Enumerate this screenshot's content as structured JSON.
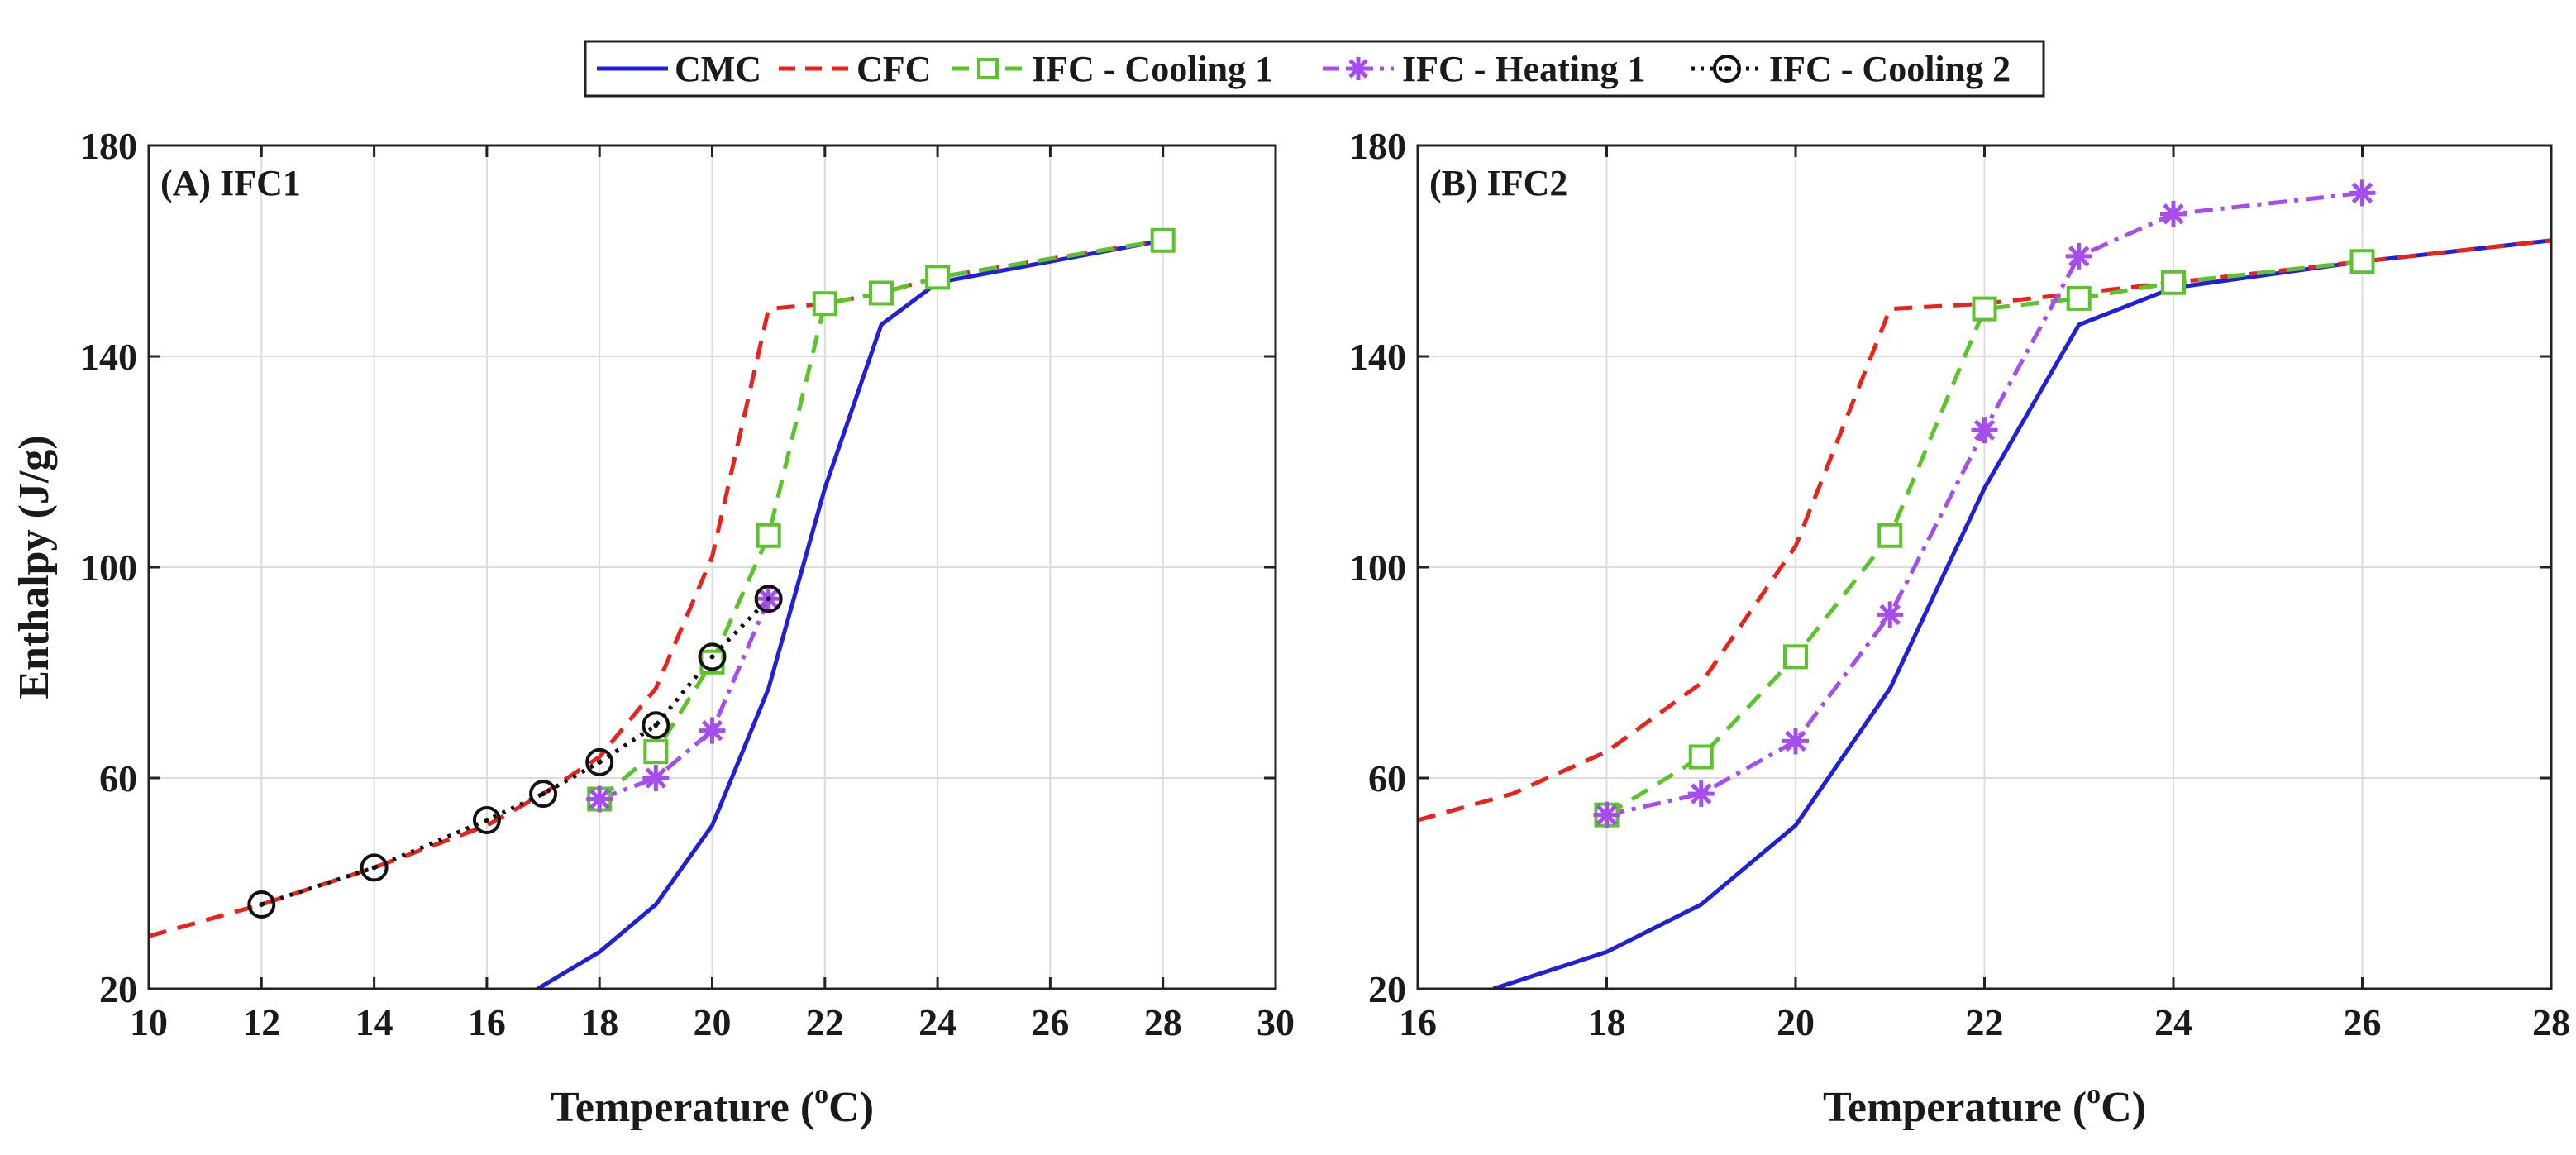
{
  "legend": {
    "entries": [
      {
        "name": "CMC",
        "color": "#1f1fdc",
        "dash": "solid",
        "marker": "none"
      },
      {
        "name": "CFC",
        "color": "#e8231c",
        "dash": "dashed",
        "marker": "none"
      },
      {
        "name": "IFC - Cooling 1",
        "color": "#5bc42b",
        "dash": "dashed",
        "marker": "square"
      },
      {
        "name": "IFC - Heating 1",
        "color": "#a64df0",
        "dash": "dashdot",
        "marker": "asterisk"
      },
      {
        "name": "IFC - Cooling 2",
        "color": "#111111",
        "dash": "dotted",
        "marker": "circle"
      }
    ]
  },
  "chart_data": [
    {
      "type": "line",
      "title": "(A) IFC1",
      "xlabel": "Temperature (",
      "xlabel_sup": "o",
      "xlabel_end": "C)",
      "ylabel": "Enthalpy (J/g)",
      "xlim": [
        10,
        30
      ],
      "ylim": [
        20,
        180
      ],
      "xticks": [
        10,
        12,
        14,
        16,
        18,
        20,
        22,
        24,
        26,
        28,
        30
      ],
      "yticks": [
        20,
        60,
        100,
        140,
        180
      ],
      "grid": true,
      "series": [
        {
          "name": "CMC",
          "x": [
            16.9,
            18,
            19,
            20,
            21,
            22,
            23,
            24,
            28
          ],
          "y": [
            20,
            27,
            36,
            51,
            77,
            115,
            146,
            154,
            162
          ]
        },
        {
          "name": "CFC",
          "x": [
            10,
            12,
            14,
            16,
            17,
            18,
            19,
            20,
            21,
            22,
            23,
            24,
            28
          ],
          "y": [
            30,
            36,
            43,
            51,
            57,
            64,
            77,
            102,
            149,
            150,
            152,
            155,
            162
          ]
        },
        {
          "name": "IFC - Cooling 1",
          "x": [
            18,
            19,
            20,
            21,
            22,
            23,
            24,
            28
          ],
          "y": [
            56,
            65,
            82,
            106,
            150,
            152,
            155,
            162
          ]
        },
        {
          "name": "IFC - Heating 1",
          "x": [
            18,
            19,
            20,
            21
          ],
          "y": [
            56,
            60,
            69,
            94
          ]
        },
        {
          "name": "IFC - Cooling 2",
          "x": [
            12,
            14,
            16,
            17,
            18,
            19,
            20,
            21
          ],
          "y": [
            36,
            43,
            52,
            57,
            63,
            70,
            83,
            94
          ]
        }
      ]
    },
    {
      "type": "line",
      "title": "(B) IFC2",
      "xlabel": "Temperature (",
      "xlabel_sup": "o",
      "xlabel_end": "C)",
      "ylabel": "",
      "xlim": [
        16,
        28
      ],
      "ylim": [
        20,
        180
      ],
      "xticks": [
        16,
        18,
        20,
        22,
        24,
        26,
        28
      ],
      "yticks": [
        20,
        60,
        100,
        140,
        180
      ],
      "grid": true,
      "series": [
        {
          "name": "CMC",
          "x": [
            16.8,
            18,
            19,
            20,
            21,
            22,
            23,
            24,
            26,
            28
          ],
          "y": [
            20,
            27,
            36,
            51,
            77,
            115,
            146,
            153,
            158,
            162
          ]
        },
        {
          "name": "CFC",
          "x": [
            16,
            17,
            18,
            19,
            20,
            21,
            22,
            23,
            24,
            26,
            28
          ],
          "y": [
            52,
            57,
            65,
            78,
            104,
            149,
            150,
            152,
            154,
            158,
            162
          ]
        },
        {
          "name": "IFC - Cooling 1",
          "x": [
            18,
            19,
            20,
            21,
            22,
            23,
            24,
            26
          ],
          "y": [
            53,
            64,
            83,
            106,
            149,
            151,
            154,
            158
          ]
        },
        {
          "name": "IFC - Heating 1",
          "x": [
            18,
            19,
            20,
            21,
            22,
            23,
            24,
            26
          ],
          "y": [
            53,
            57,
            67,
            91,
            126,
            159,
            167,
            171
          ]
        }
      ]
    }
  ]
}
